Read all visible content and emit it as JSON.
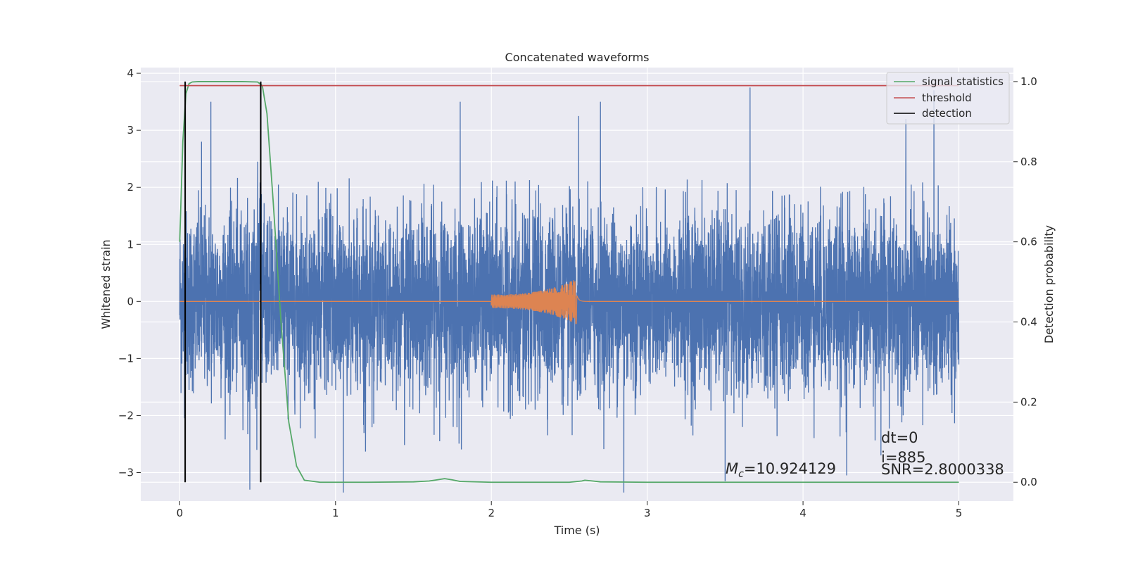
{
  "chart_data": {
    "type": "line",
    "title": "Concatenated waveforms",
    "xlabel": "Time (s)",
    "ylabel": "Whitened strain",
    "y2label": "Detection probability",
    "xlim": [
      -0.25,
      5.35
    ],
    "ylim": [
      -3.5,
      4.1
    ],
    "y2lim": [
      -0.047,
      1.035
    ],
    "xticks": [
      0,
      1,
      2,
      3,
      4,
      5
    ],
    "yticks": [
      4,
      3,
      2,
      1,
      0,
      -1,
      -2,
      -3
    ],
    "ytick_labels": [
      "4",
      "3",
      "2",
      "1",
      "0",
      "−1",
      "−2",
      "−3"
    ],
    "y2ticks": [
      1.0,
      0.8,
      0.6,
      0.4,
      0.2,
      0.0
    ],
    "y2tick_labels": [
      "1.0",
      "0.8",
      "0.6",
      "0.4",
      "0.2",
      "0.0"
    ],
    "grid": true,
    "legend_position": "top-right",
    "legend": [
      "signal statistics",
      "threshold",
      "detection"
    ],
    "series": [
      {
        "name": "",
        "axis": "left",
        "color": "#4c72b0",
        "kind": "noise",
        "x_range": [
          0,
          5
        ],
        "envelope_abs": 2.2,
        "peaks": [
          {
            "x": 0.2,
            "y": 3.5
          },
          {
            "x": 0.14,
            "y": 2.8
          },
          {
            "x": 0.5,
            "y": 2.45
          },
          {
            "x": 1.8,
            "y": 3.5
          },
          {
            "x": 2.56,
            "y": 3.25
          },
          {
            "x": 2.7,
            "y": 3.5
          },
          {
            "x": 3.66,
            "y": 3.75
          },
          {
            "x": 4.5,
            "y": 3.05
          },
          {
            "x": 4.66,
            "y": 3.2
          },
          {
            "x": 4.84,
            "y": 3.7
          },
          {
            "x": 0.45,
            "y": -3.3
          },
          {
            "x": 1.05,
            "y": -3.35
          },
          {
            "x": 2.85,
            "y": -3.35
          },
          {
            "x": 3.5,
            "y": -3.15
          },
          {
            "x": 4.28,
            "y": -3.05
          },
          {
            "x": 4.5,
            "y": -2.7
          }
        ]
      },
      {
        "name": "",
        "axis": "left",
        "color": "#dd8452",
        "kind": "chirp",
        "x_range": [
          0,
          5
        ],
        "chirp_start": 2.0,
        "chirp_merger": 2.55,
        "chirp_end": 2.62,
        "chirp_start_amp": 0.12,
        "chirp_peak_amp": 0.4
      },
      {
        "name": "signal statistics",
        "axis": "right",
        "color": "#55a868",
        "x": [
          0,
          0.02,
          0.04,
          0.06,
          0.08,
          0.12,
          0.2,
          0.3,
          0.4,
          0.5,
          0.53,
          0.56,
          0.6,
          0.65,
          0.7,
          0.75,
          0.8,
          0.9,
          1.0,
          1.2,
          1.5,
          1.6,
          1.65,
          1.7,
          1.75,
          1.8,
          2.0,
          2.5,
          2.58,
          2.6,
          2.63,
          2.7,
          3.0,
          4.0,
          5.0
        ],
        "y": [
          0.6,
          0.85,
          0.97,
          0.995,
          0.999,
          1.0,
          1.0,
          1.0,
          1.0,
          0.999,
          0.99,
          0.92,
          0.7,
          0.4,
          0.15,
          0.04,
          0.005,
          0.0,
          0.0,
          0.0,
          0.001,
          0.003,
          0.006,
          0.009,
          0.006,
          0.002,
          0.0,
          0.0,
          0.003,
          0.005,
          0.004,
          0.001,
          0.0,
          0.0,
          0.0
        ]
      },
      {
        "name": "threshold",
        "axis": "right",
        "color": "#c44e52",
        "x": [
          0,
          5
        ],
        "y": [
          0.99,
          0.99
        ]
      },
      {
        "name": "detection",
        "axis": "right",
        "color": "#000000",
        "vlines": [
          0.035,
          0.52
        ],
        "ymin": 0.0,
        "ymax": 1.0
      }
    ],
    "annotations": {
      "mc": "=10.924129",
      "mc_symbol_main": "M",
      "mc_symbol_sub": "c",
      "dt": "dt=0",
      "i": "i=885",
      "snr": "SNR=2.8000338"
    }
  }
}
